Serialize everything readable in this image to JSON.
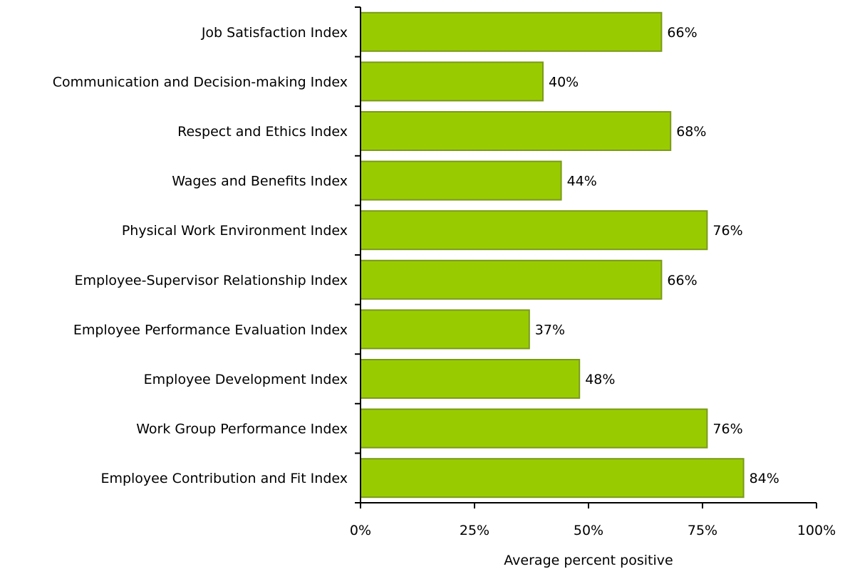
{
  "chart_data": {
    "type": "bar",
    "orientation": "horizontal",
    "categories": [
      "Job Satisfaction Index",
      "Communication and Decision-making Index",
      "Respect and Ethics Index",
      "Wages and Benefits Index",
      "Physical Work Environment Index",
      "Employee-Supervisor Relationship Index",
      "Employee Performance Evaluation Index",
      "Employee Development Index",
      "Work Group Performance Index",
      "Employee Contribution and Fit Index"
    ],
    "values": [
      66,
      40,
      68,
      44,
      76,
      66,
      37,
      48,
      76,
      84
    ],
    "data_labels": [
      "66%",
      "40%",
      "68%",
      "44%",
      "76%",
      "66%",
      "37%",
      "48%",
      "76%",
      "84%"
    ],
    "xlim": [
      0,
      100
    ],
    "x_ticks": [
      0,
      25,
      50,
      75,
      100
    ],
    "x_tick_labels": [
      "0%",
      "25%",
      "50%",
      "75%",
      "100%"
    ],
    "title": "",
    "xlabel": "Average percent positive",
    "ylabel": "",
    "grid": false,
    "legend": "none",
    "colors": {
      "bar_fill": "#99CC00",
      "bar_stroke": "#7A9A1A",
      "axis": "#000000"
    }
  }
}
